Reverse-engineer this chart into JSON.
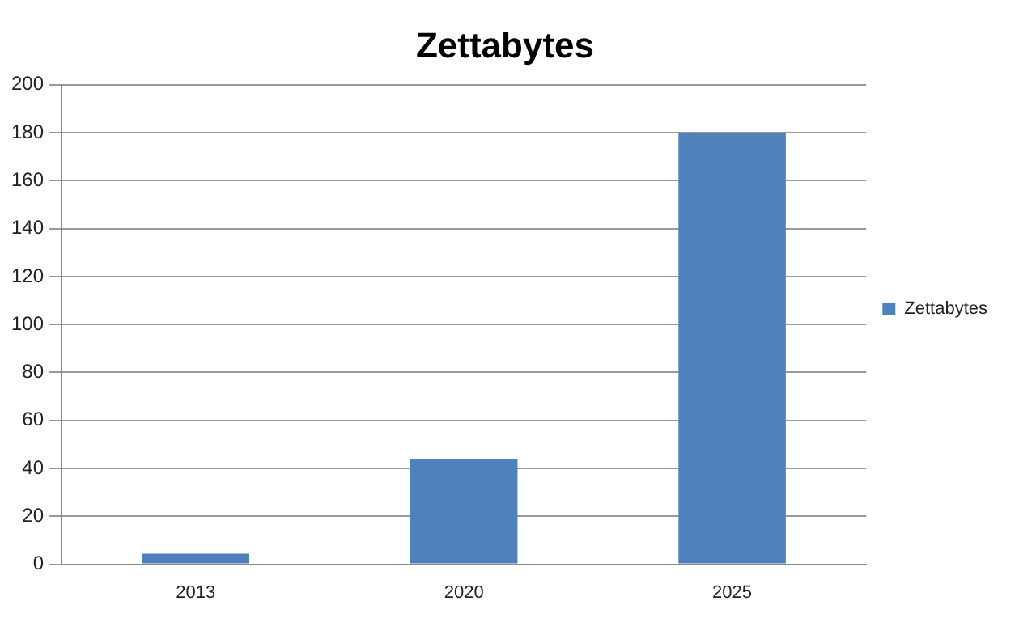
{
  "chart_data": {
    "type": "bar",
    "title": "Zettabytes",
    "categories": [
      "2013",
      "2020",
      "2025"
    ],
    "series": [
      {
        "name": "Zettabytes",
        "color": "#4f81bd",
        "values": [
          4.4,
          44,
          180
        ]
      }
    ],
    "ylim": [
      0,
      200
    ],
    "yticks": [
      0,
      20,
      40,
      60,
      80,
      100,
      120,
      140,
      160,
      180,
      200
    ],
    "grid": "y",
    "legend": "right"
  }
}
